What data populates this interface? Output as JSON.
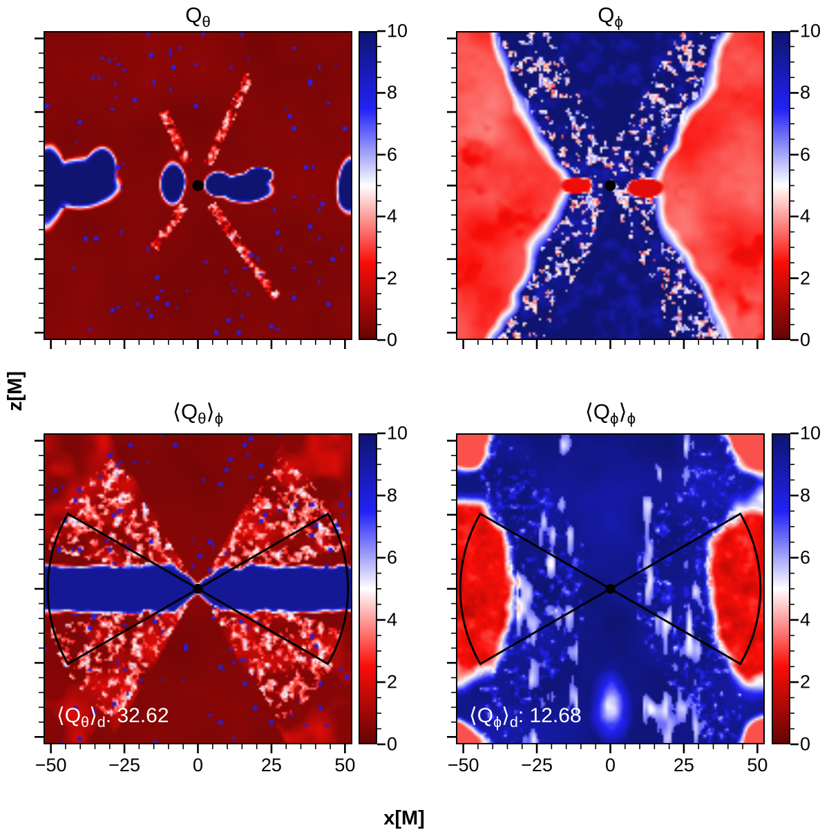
{
  "figure": {
    "kind": "2x2 grid of simulation heatmaps with individual colorbars",
    "x_axis": {
      "label": "x[M]",
      "tick_labels": [
        "−50",
        "−25",
        "0",
        "25",
        "50"
      ],
      "tick_values": [
        -50,
        -25,
        0,
        25,
        50
      ],
      "range": [
        -52.5,
        52.5
      ],
      "minor_tick_step": 5
    },
    "y_axis": {
      "label": "z[M]",
      "range": [
        -52.5,
        52.5
      ],
      "minor_tick_step": 5,
      "tick_labels": []
    },
    "colorbar": {
      "min": 0,
      "max": 10,
      "tick_labels_top_to_bottom": [
        "10",
        "8",
        "6",
        "4",
        "2",
        "0"
      ],
      "tick_values_top_to_bottom": [
        10,
        8,
        6,
        4,
        2,
        0
      ],
      "minor_tick_step": 0.5,
      "gradient_stops": [
        {
          "v": 0,
          "color": "#640406"
        },
        {
          "v": 2.5,
          "color": "#fa0e08"
        },
        {
          "v": 5,
          "color": "#ffffff"
        },
        {
          "v": 7.5,
          "color": "#2222f5"
        },
        {
          "v": 10,
          "color": "#0e1470"
        }
      ]
    }
  },
  "panels": [
    {
      "id": "q-theta",
      "title": {
        "pre": "Q",
        "sub": "θ",
        "mid": "",
        "sub2": ""
      }
    },
    {
      "id": "q-phi",
      "title": {
        "pre": "Q",
        "sub": "ϕ",
        "mid": "",
        "sub2": ""
      }
    },
    {
      "id": "q-theta-phi-average",
      "title": {
        "pre": "⟨Q",
        "sub": "θ",
        "mid": "⟩",
        "sub2": "ϕ"
      },
      "annotation": {
        "pre": "⟨Q",
        "sub": "θ",
        "mid": "⟩",
        "sub2": "d",
        "post": ": 32.62",
        "value": 32.62
      }
    },
    {
      "id": "q-phi-phi-average",
      "title": {
        "pre": "⟨Q",
        "sub": "ϕ",
        "mid": "⟩",
        "sub2": "ϕ"
      },
      "annotation": {
        "pre": "⟨Q",
        "sub": "ϕ",
        "mid": "⟩",
        "sub2": "d",
        "post": ": 12.68",
        "value": 12.68
      }
    }
  ],
  "chart_data": {
    "type": "heatmap",
    "layout": "2 rows x 2 columns; shared x axis labeled only under bottom row; one colorbar per panel",
    "x_range": [
      -52.5,
      52.5
    ],
    "z_range": [
      -52.5,
      52.5
    ],
    "value_range": [
      0,
      10
    ],
    "colormap": "red-white-blue (seismic reversed): 0=dark red, 2.5=red, 5=white, 7.5=blue, 10=dark navy",
    "x_ticks": [
      -50,
      -25,
      0,
      25,
      50
    ],
    "colorbar_ticks": [
      0,
      2,
      4,
      6,
      8,
      10
    ],
    "black_hole_marker": {
      "shape": "filled black dot",
      "position": [
        0,
        0
      ],
      "radius_M": 1.7
    },
    "wedge_contour": {
      "panels": [
        "q-theta-phi-average",
        "q-phi-phi-average"
      ],
      "shape": "black bow-tie: two mirrored sectors from the origin",
      "half_angle_deg": 30,
      "radius_M": 51.5
    },
    "panels": [
      {
        "title": "Q_θ",
        "description": "Dark red (Q≈0–1) background; saturated blue (Q≈10) blobs along the midplane: a large lobe near x≈−40, small butterfly lobes around the origin and x≈+17, and a notch at the right edge; thin speckled red/white diagonal streaks radiating from the center; black dot at origin."
      },
      {
        "title": "Q_ϕ",
        "description": "Red (Q≈2–4) turbulent regions on the left and right sides; broad dark-blue (Q≈8–10) funnel crossing the panel vertically and widening toward top and bottom; small red spots near the center at x≈±12; black dot at origin."
      },
      {
        "title": "⟨Q_θ⟩_ϕ",
        "annotation_text": "⟨Q_θ⟩_d: 32.62",
        "disk_average": 32.62,
        "description": "Dark red background; ragged dark-blue high-Q band along the midplane that pinches at the origin; speckled white/blue/red diagonal streaks in an X pattern; black bow-tie wedge contour and central black dot; white annotation lower left."
      },
      {
        "title": "⟨Q_ϕ⟩_ϕ",
        "annotation_text": "⟨Q_ϕ⟩_d: 12.68",
        "disk_average": 12.68,
        "description": "Dark blue background; red low-Q lobes at the far left and right inside the wedge; speckled pale streaks in an X pattern; pale plume at bottom center; red patches in the corners; black bow-tie wedge contour and central black dot; white annotation lower left."
      }
    ]
  }
}
